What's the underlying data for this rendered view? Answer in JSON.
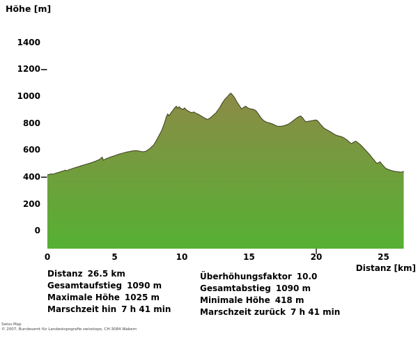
{
  "axes": {
    "y_title": "Höhe [m]",
    "x_title": "Distanz [km]"
  },
  "chart_data": {
    "type": "area",
    "title": "",
    "xlabel": "Distanz [km]",
    "ylabel": "Höhe [m]",
    "x_unit": "km",
    "y_unit": "m",
    "xlim": [
      0,
      26.5
    ],
    "ylim": [
      0,
      1400
    ],
    "y_ticks": [
      1400,
      1200,
      1000,
      800,
      600,
      400,
      200,
      0
    ],
    "x_ticks": [
      0,
      5,
      10,
      15,
      20,
      25
    ],
    "y_dash_ticks": [
      1200,
      400
    ],
    "x_marker_ticks": [
      20
    ],
    "grid": "off",
    "legend": "none",
    "fill_gradient_top": "#8d8a47",
    "fill_gradient_bottom": "#55b133",
    "outline_color": "#3c3c22",
    "points": [
      [
        0,
        418
      ],
      [
        0.15,
        422
      ],
      [
        0.3,
        425
      ],
      [
        0.45,
        423
      ],
      [
        0.6,
        429
      ],
      [
        0.75,
        434
      ],
      [
        0.9,
        438
      ],
      [
        1.05,
        443
      ],
      [
        1.2,
        448
      ],
      [
        1.35,
        453
      ],
      [
        1.45,
        447
      ],
      [
        1.6,
        456
      ],
      [
        1.75,
        461
      ],
      [
        1.9,
        466
      ],
      [
        2.1,
        472
      ],
      [
        2.3,
        478
      ],
      [
        2.5,
        485
      ],
      [
        2.7,
        491
      ],
      [
        2.9,
        497
      ],
      [
        3.1,
        503
      ],
      [
        3.3,
        509
      ],
      [
        3.5,
        516
      ],
      [
        3.7,
        524
      ],
      [
        3.9,
        534
      ],
      [
        4.0,
        543
      ],
      [
        4.08,
        549
      ],
      [
        4.18,
        526
      ],
      [
        4.3,
        535
      ],
      [
        4.5,
        543
      ],
      [
        4.7,
        550
      ],
      [
        4.9,
        557
      ],
      [
        5.1,
        564
      ],
      [
        5.3,
        571
      ],
      [
        5.5,
        577
      ],
      [
        5.7,
        582
      ],
      [
        5.9,
        587
      ],
      [
        6.1,
        591
      ],
      [
        6.3,
        595
      ],
      [
        6.5,
        598
      ],
      [
        6.7,
        597
      ],
      [
        6.85,
        594
      ],
      [
        7.0,
        591
      ],
      [
        7.15,
        589
      ],
      [
        7.3,
        592
      ],
      [
        7.6,
        612
      ],
      [
        7.9,
        640
      ],
      [
        8.1,
        672
      ],
      [
        8.3,
        710
      ],
      [
        8.5,
        748
      ],
      [
        8.7,
        800
      ],
      [
        8.85,
        850
      ],
      [
        8.95,
        870
      ],
      [
        9.05,
        858
      ],
      [
        9.2,
        880
      ],
      [
        9.35,
        900
      ],
      [
        9.5,
        920
      ],
      [
        9.6,
        928
      ],
      [
        9.7,
        912
      ],
      [
        9.8,
        925
      ],
      [
        9.95,
        910
      ],
      [
        10.1,
        905
      ],
      [
        10.2,
        915
      ],
      [
        10.35,
        900
      ],
      [
        10.5,
        891
      ],
      [
        10.7,
        880
      ],
      [
        10.9,
        885
      ],
      [
        11.05,
        875
      ],
      [
        11.2,
        870
      ],
      [
        11.45,
        855
      ],
      [
        11.7,
        840
      ],
      [
        11.9,
        830
      ],
      [
        12.1,
        840
      ],
      [
        12.3,
        858
      ],
      [
        12.55,
        880
      ],
      [
        12.8,
        915
      ],
      [
        13.0,
        950
      ],
      [
        13.2,
        980
      ],
      [
        13.4,
        1000
      ],
      [
        13.55,
        1018
      ],
      [
        13.65,
        1025
      ],
      [
        13.8,
        1008
      ],
      [
        13.95,
        988
      ],
      [
        14.1,
        960
      ],
      [
        14.3,
        930
      ],
      [
        14.45,
        907
      ],
      [
        14.6,
        920
      ],
      [
        14.75,
        928
      ],
      [
        14.9,
        916
      ],
      [
        15.1,
        908
      ],
      [
        15.3,
        905
      ],
      [
        15.5,
        896
      ],
      [
        15.7,
        870
      ],
      [
        15.9,
        840
      ],
      [
        16.1,
        820
      ],
      [
        16.3,
        810
      ],
      [
        16.5,
        804
      ],
      [
        16.7,
        798
      ],
      [
        16.9,
        788
      ],
      [
        17.1,
        780
      ],
      [
        17.3,
        778
      ],
      [
        17.5,
        781
      ],
      [
        17.7,
        786
      ],
      [
        17.9,
        794
      ],
      [
        18.1,
        806
      ],
      [
        18.3,
        822
      ],
      [
        18.5,
        838
      ],
      [
        18.7,
        850
      ],
      [
        18.85,
        856
      ],
      [
        19.0,
        840
      ],
      [
        19.15,
        818
      ],
      [
        19.25,
        812
      ],
      [
        19.4,
        816
      ],
      [
        19.6,
        819
      ],
      [
        19.8,
        822
      ],
      [
        19.95,
        826
      ],
      [
        20.1,
        820
      ],
      [
        20.3,
        795
      ],
      [
        20.5,
        772
      ],
      [
        20.7,
        757
      ],
      [
        20.9,
        746
      ],
      [
        21.1,
        735
      ],
      [
        21.3,
        722
      ],
      [
        21.5,
        712
      ],
      [
        21.7,
        706
      ],
      [
        21.9,
        701
      ],
      [
        22.1,
        690
      ],
      [
        22.3,
        676
      ],
      [
        22.5,
        658
      ],
      [
        22.62,
        650
      ],
      [
        22.8,
        662
      ],
      [
        22.95,
        668
      ],
      [
        23.1,
        656
      ],
      [
        23.25,
        645
      ],
      [
        23.4,
        630
      ],
      [
        23.55,
        614
      ],
      [
        23.7,
        598
      ],
      [
        23.85,
        582
      ],
      [
        24.0,
        565
      ],
      [
        24.15,
        545
      ],
      [
        24.3,
        528
      ],
      [
        24.45,
        508
      ],
      [
        24.55,
        504
      ],
      [
        24.65,
        510
      ],
      [
        24.75,
        514
      ],
      [
        24.85,
        500
      ],
      [
        25.0,
        484
      ],
      [
        25.15,
        468
      ],
      [
        25.3,
        460
      ],
      [
        25.45,
        454
      ],
      [
        25.6,
        450
      ],
      [
        25.75,
        446
      ],
      [
        25.9,
        443
      ],
      [
        26.05,
        441
      ],
      [
        26.2,
        439
      ],
      [
        26.35,
        438
      ],
      [
        26.45,
        441
      ],
      [
        26.5,
        445
      ]
    ]
  },
  "stats": {
    "left": [
      {
        "label": "Distanz",
        "value": "26.5 km"
      },
      {
        "label": "Gesamtaufstieg",
        "value": "1090 m"
      },
      {
        "label": "Maximale Höhe",
        "value": "1025 m"
      },
      {
        "label": "Marschzeit hin",
        "value": "7 h 41 min"
      }
    ],
    "right": [
      {
        "label": "Überhöhungsfaktor",
        "value": "10.0"
      },
      {
        "label": "Gesamtabstieg",
        "value": "1090 m"
      },
      {
        "label": "Minimale Höhe",
        "value": "418 m"
      },
      {
        "label": "Marschzeit zurück",
        "value": "7 h 41 min"
      }
    ]
  },
  "footer": {
    "line1": "Swiss Map",
    "line2": "© 2007, Bundesamt für Landestopografie swisstopo, CH-3084 Wabern"
  }
}
